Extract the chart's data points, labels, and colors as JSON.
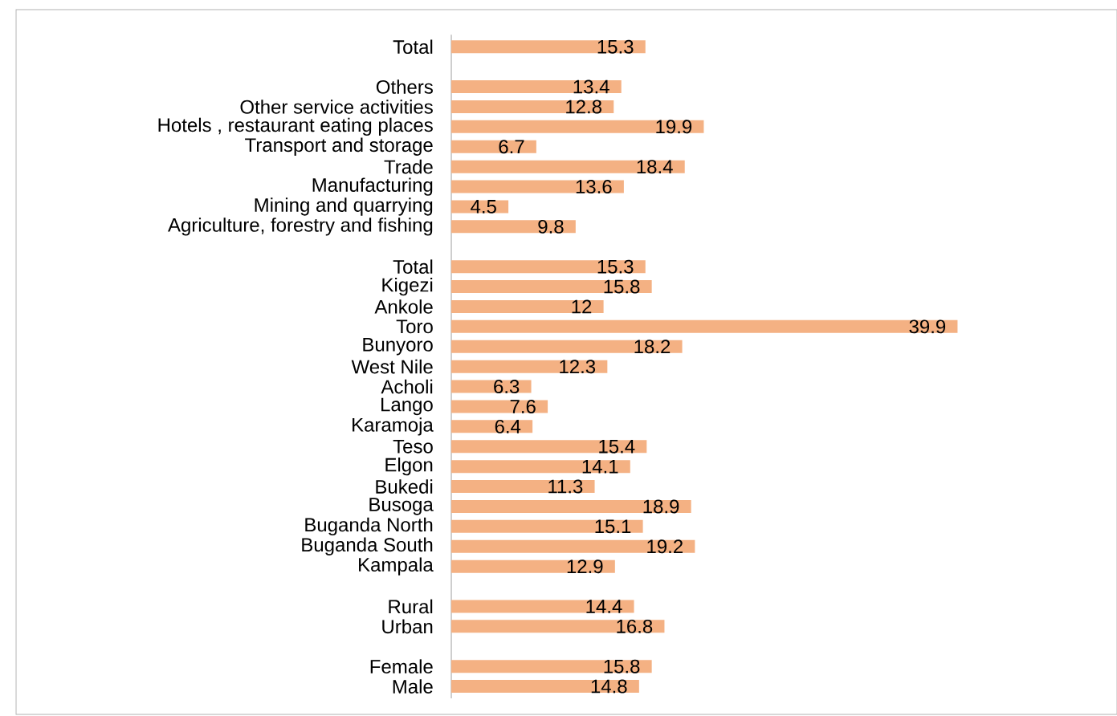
{
  "chart_data": {
    "type": "bar",
    "orientation": "horizontal",
    "color": "#f4b183",
    "data_labels": true,
    "tick_labels": "y",
    "categories": [
      "Total",
      null,
      "Others",
      "Other service activities",
      "Hotels , restaurant eating places",
      "Transport and storage",
      "Trade",
      "Manufacturing",
      "Mining and quarrying",
      "Agriculture, forestry and fishing",
      null,
      "Total",
      "Kigezi",
      "Ankole",
      "Toro",
      "Bunyoro",
      "West Nile",
      "Acholi",
      "Lango",
      "Karamoja",
      "Teso",
      "Elgon",
      "Bukedi",
      "Busoga",
      "Buganda North",
      "Buganda South",
      "Kampala",
      null,
      "Rural",
      "Urban",
      null,
      "Female",
      "Male"
    ],
    "values": [
      15.3,
      null,
      13.4,
      12.8,
      19.9,
      6.7,
      18.4,
      13.6,
      4.5,
      9.8,
      null,
      15.3,
      15.8,
      12,
      39.9,
      18.2,
      12.3,
      6.3,
      7.6,
      6.4,
      15.4,
      14.1,
      11.3,
      18.9,
      15.1,
      19.2,
      12.9,
      null,
      14.4,
      16.8,
      null,
      15.8,
      14.8
    ]
  }
}
